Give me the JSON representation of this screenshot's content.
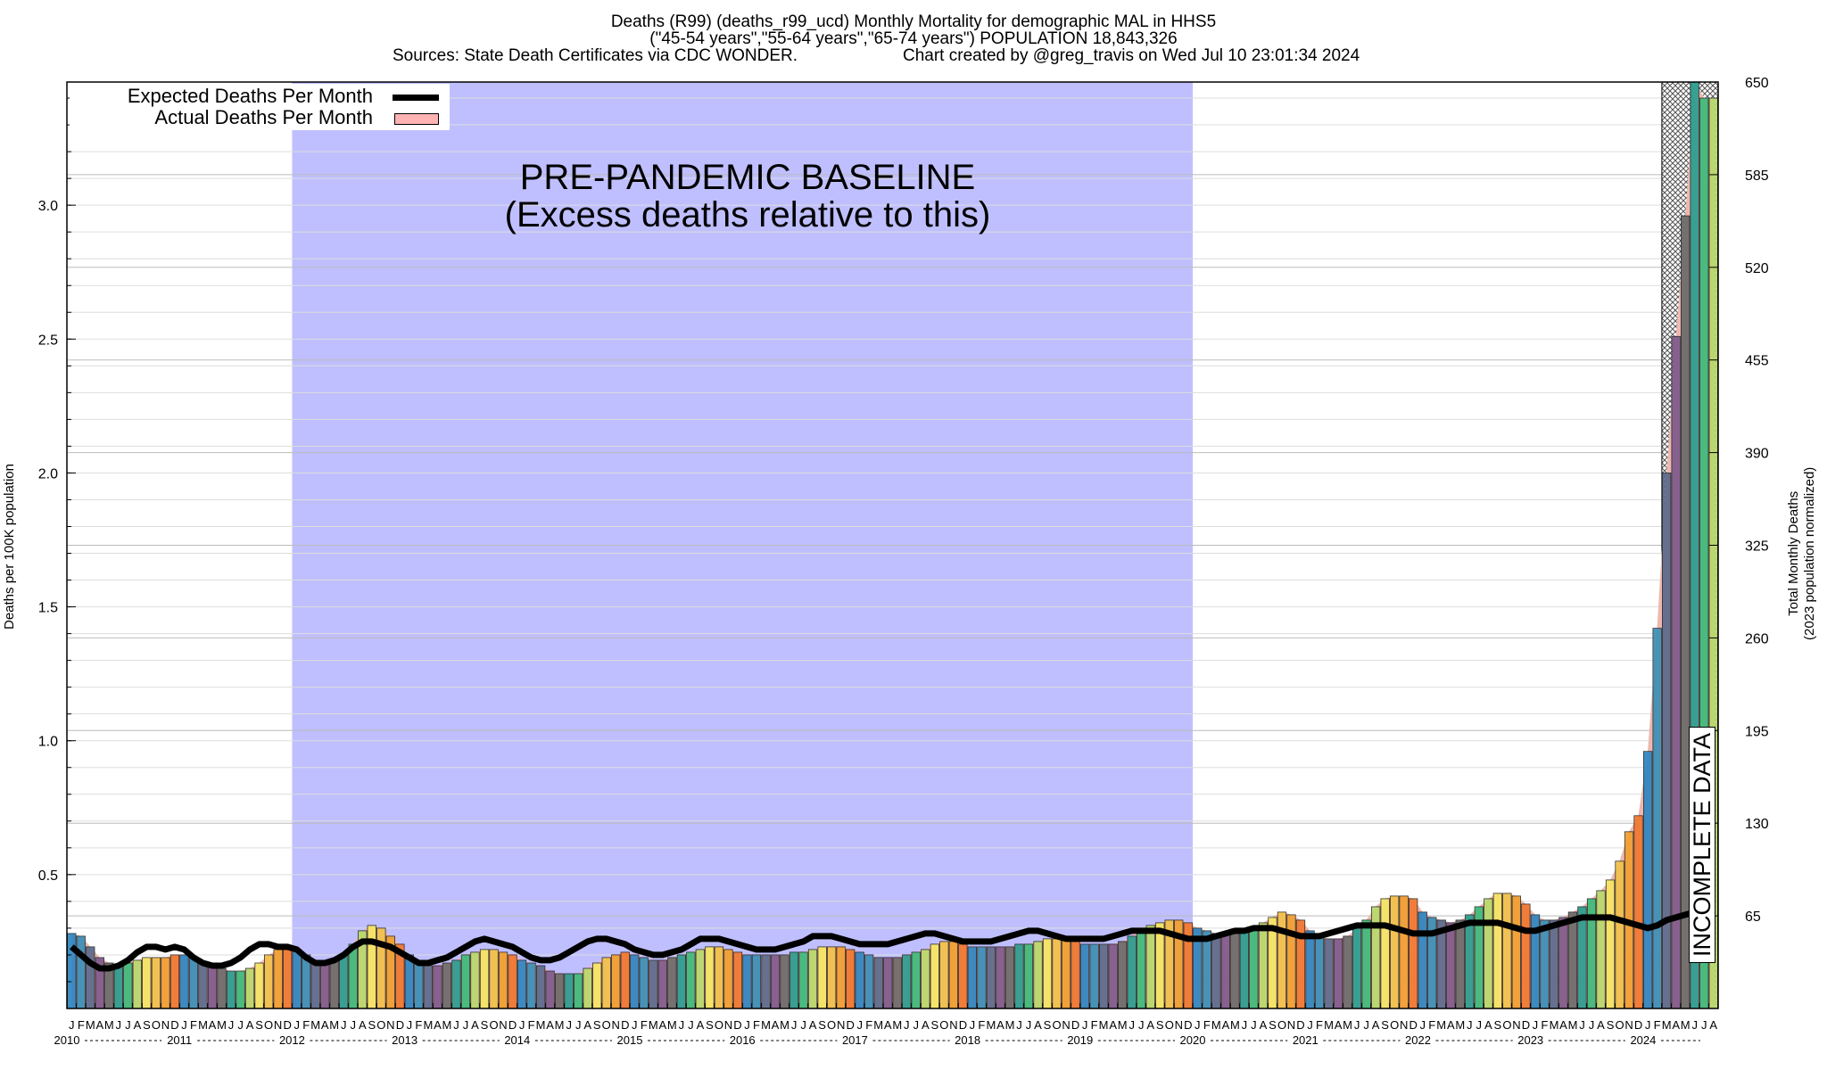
{
  "header": {
    "title_line1": "Deaths (R99) (deaths_r99_ucd) Monthly Mortality for demographic MAL in HHS5",
    "title_line2": "(\"45-54 years\",\"55-64 years\",\"65-74 years\") POPULATION 18,843,326",
    "sources": "Sources: State Death Certificates via CDC WONDER.",
    "credit": "Chart created by @greg_travis on Wed Jul 10 23:01:34 2024"
  },
  "legend": {
    "expected_label": "Expected Deaths Per Month",
    "actual_label": "Actual Deaths Per Month",
    "position": "top-left"
  },
  "annotations": {
    "baseline_line1": "PRE-PANDEMIC BASELINE",
    "baseline_line2": "(Excess deaths relative to this)",
    "incomplete": "INCOMPLETE DATA"
  },
  "colors": {
    "baseline_band": "#bfbfff",
    "actual_fill": "#ffb3b3",
    "excess_green": "#66dd99",
    "expected_line": "#000000",
    "bar_colors_by_month": [
      "#2e86c1",
      "#3a8fb7",
      "#5b6b8c",
      "#7e5a8c",
      "#6b6b6b",
      "#2a9d8f",
      "#3dbb7a",
      "#b8d96b",
      "#f5e663",
      "#f0c24b",
      "#f0a030",
      "#f07830"
    ]
  },
  "chart_data": {
    "type": "bar",
    "ylabel": "Deaths per 100K population",
    "y2label_line1": "Total Monthly Deaths",
    "y2label_line2": "(2023 population normalized)",
    "ylim": [
      0.0,
      3.46
    ],
    "y2lim": [
      0,
      650
    ],
    "yticks": [
      "0.5",
      "1.0",
      "1.5",
      "2.0",
      "2.5",
      "3.0"
    ],
    "yticks_values": [
      0.5,
      1.0,
      1.5,
      2.0,
      2.5,
      3.0
    ],
    "y2ticks": [
      "65",
      "130",
      "195",
      "260",
      "325",
      "390",
      "455",
      "520",
      "585",
      "650"
    ],
    "y2ticks_values": [
      65,
      130,
      195,
      260,
      325,
      390,
      455,
      520,
      585,
      650
    ],
    "month_letters": [
      "J",
      "F",
      "M",
      "A",
      "M",
      "J",
      "J",
      "A",
      "S",
      "O",
      "N",
      "D"
    ],
    "years": [
      "2010",
      "2011",
      "2012",
      "2013",
      "2014",
      "2015",
      "2016",
      "2017",
      "2018",
      "2019",
      "2020",
      "2021",
      "2022",
      "2023",
      "2024"
    ],
    "start": "2010-01",
    "last_month_letters_2024": [
      "J",
      "F",
      "M",
      "A",
      "M",
      "J",
      "J",
      "A"
    ],
    "baseline_range": [
      "2012-01",
      "2019-12"
    ],
    "incomplete_range": [
      "2024-03",
      "2024-08"
    ],
    "grid": true,
    "actual": [
      0.28,
      0.27,
      0.23,
      0.19,
      0.17,
      0.16,
      0.17,
      0.18,
      0.19,
      0.19,
      0.19,
      0.2,
      0.2,
      0.19,
      0.17,
      0.16,
      0.15,
      0.14,
      0.14,
      0.15,
      0.17,
      0.2,
      0.22,
      0.22,
      0.22,
      0.2,
      0.18,
      0.17,
      0.18,
      0.2,
      0.24,
      0.29,
      0.31,
      0.3,
      0.27,
      0.24,
      0.2,
      0.17,
      0.16,
      0.16,
      0.17,
      0.18,
      0.2,
      0.21,
      0.22,
      0.22,
      0.21,
      0.2,
      0.18,
      0.17,
      0.16,
      0.14,
      0.13,
      0.13,
      0.13,
      0.15,
      0.17,
      0.19,
      0.2,
      0.21,
      0.2,
      0.19,
      0.18,
      0.18,
      0.19,
      0.2,
      0.21,
      0.22,
      0.23,
      0.23,
      0.22,
      0.21,
      0.2,
      0.2,
      0.2,
      0.2,
      0.2,
      0.21,
      0.21,
      0.22,
      0.23,
      0.23,
      0.23,
      0.22,
      0.21,
      0.2,
      0.19,
      0.19,
      0.19,
      0.2,
      0.21,
      0.22,
      0.24,
      0.25,
      0.25,
      0.24,
      0.23,
      0.23,
      0.23,
      0.23,
      0.23,
      0.24,
      0.24,
      0.25,
      0.26,
      0.26,
      0.26,
      0.25,
      0.24,
      0.24,
      0.24,
      0.24,
      0.25,
      0.27,
      0.3,
      0.31,
      0.32,
      0.33,
      0.33,
      0.32,
      0.3,
      0.29,
      0.28,
      0.28,
      0.28,
      0.29,
      0.3,
      0.32,
      0.34,
      0.36,
      0.35,
      0.33,
      0.29,
      0.27,
      0.26,
      0.26,
      0.27,
      0.3,
      0.33,
      0.38,
      0.41,
      0.42,
      0.42,
      0.41,
      0.36,
      0.34,
      0.33,
      0.32,
      0.33,
      0.35,
      0.38,
      0.41,
      0.43,
      0.43,
      0.42,
      0.39,
      0.35,
      0.33,
      0.33,
      0.34,
      0.36,
      0.38,
      0.41,
      0.44,
      0.48,
      0.55,
      0.66,
      0.72,
      0.96,
      1.42,
      2.0,
      2.51,
      2.96,
      3.46,
      3.4,
      3.4
    ],
    "expected": [
      0.23,
      0.2,
      0.17,
      0.15,
      0.15,
      0.16,
      0.18,
      0.21,
      0.23,
      0.23,
      0.22,
      0.23,
      0.22,
      0.19,
      0.17,
      0.16,
      0.16,
      0.17,
      0.19,
      0.22,
      0.24,
      0.24,
      0.23,
      0.23,
      0.22,
      0.19,
      0.17,
      0.17,
      0.18,
      0.2,
      0.23,
      0.25,
      0.25,
      0.24,
      0.23,
      0.21,
      0.19,
      0.17,
      0.17,
      0.18,
      0.19,
      0.21,
      0.23,
      0.25,
      0.26,
      0.25,
      0.24,
      0.23,
      0.21,
      0.19,
      0.18,
      0.18,
      0.19,
      0.21,
      0.23,
      0.25,
      0.26,
      0.26,
      0.25,
      0.24,
      0.22,
      0.21,
      0.2,
      0.2,
      0.21,
      0.22,
      0.24,
      0.26,
      0.26,
      0.26,
      0.25,
      0.24,
      0.23,
      0.22,
      0.22,
      0.22,
      0.23,
      0.24,
      0.25,
      0.27,
      0.27,
      0.27,
      0.26,
      0.25,
      0.24,
      0.24,
      0.24,
      0.24,
      0.25,
      0.26,
      0.27,
      0.28,
      0.28,
      0.27,
      0.26,
      0.25,
      0.25,
      0.25,
      0.25,
      0.26,
      0.27,
      0.28,
      0.29,
      0.29,
      0.28,
      0.27,
      0.26,
      0.26,
      0.26,
      0.26,
      0.26,
      0.27,
      0.28,
      0.29,
      0.29,
      0.29,
      0.29,
      0.28,
      0.27,
      0.26,
      0.26,
      0.26,
      0.27,
      0.28,
      0.29,
      0.29,
      0.3,
      0.3,
      0.3,
      0.29,
      0.28,
      0.27,
      0.27,
      0.27,
      0.28,
      0.29,
      0.3,
      0.31,
      0.31,
      0.31,
      0.31,
      0.3,
      0.29,
      0.28,
      0.28,
      0.28,
      0.29,
      0.3,
      0.31,
      0.32,
      0.32,
      0.32,
      0.32,
      0.31,
      0.3,
      0.29,
      0.29,
      0.3,
      0.31,
      0.32,
      0.33,
      0.34,
      0.34,
      0.34,
      0.34,
      0.33,
      0.32,
      0.31,
      0.3,
      0.31,
      0.33,
      0.34,
      0.35,
      0.36,
      0.36,
      0.37
    ]
  }
}
